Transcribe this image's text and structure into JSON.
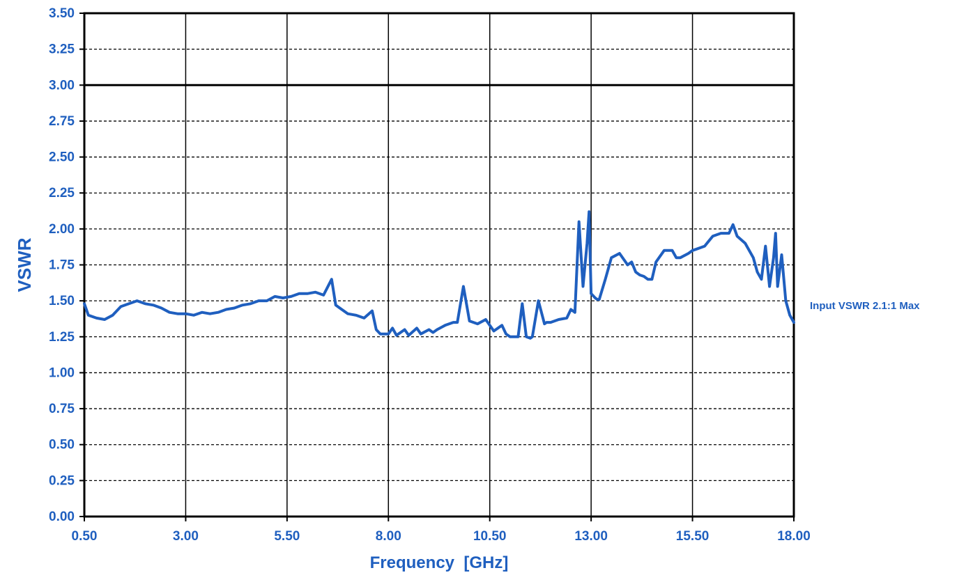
{
  "chart_data": {
    "type": "line",
    "title": "",
    "xlabel": "Frequency  [GHz]",
    "ylabel": "VSWR",
    "xlim": [
      0.5,
      18.0
    ],
    "ylim": [
      0.0,
      3.5
    ],
    "x_ticks": [
      0.5,
      3.0,
      5.5,
      8.0,
      10.5,
      13.0,
      15.5,
      18.0
    ],
    "x_tick_labels": [
      "0.50",
      "3.00",
      "5.50",
      "8.00",
      "10.50",
      "13.00",
      "15.50",
      "18.00"
    ],
    "y_ticks": [
      0.0,
      0.25,
      0.5,
      0.75,
      1.0,
      1.25,
      1.5,
      1.75,
      2.0,
      2.25,
      2.5,
      2.75,
      3.0,
      3.25,
      3.5
    ],
    "y_tick_labels": [
      "0.00",
      "0.25",
      "0.50",
      "0.75",
      "1.00",
      "1.25",
      "1.50",
      "1.75",
      "2.00",
      "2.25",
      "2.50",
      "2.75",
      "3.00",
      "3.25",
      "3.50"
    ],
    "grid": {
      "vertical": "solid",
      "horizontal": "dashed"
    },
    "reference_line": {
      "y": 3.0
    },
    "annotation": "Input VSWR 2.1:1 Max",
    "colors": {
      "series": "#1f5fbf",
      "axis_text": "#1f5fbf",
      "grid": "#000000"
    },
    "series": [
      {
        "x": [
          0.5,
          0.6,
          0.8,
          1.0,
          1.2,
          1.4,
          1.6,
          1.8,
          2.0,
          2.2,
          2.4,
          2.6,
          2.8,
          3.0,
          3.2,
          3.4,
          3.6,
          3.8,
          4.0,
          4.2,
          4.4,
          4.6,
          4.8,
          5.0,
          5.2,
          5.4,
          5.6,
          5.8,
          6.0,
          6.2,
          6.4,
          6.6,
          6.7,
          6.8,
          7.0,
          7.2,
          7.4,
          7.6,
          7.7,
          7.8,
          8.0,
          8.1,
          8.2,
          8.4,
          8.5,
          8.7,
          8.8,
          9.0,
          9.1,
          9.2,
          9.4,
          9.6,
          9.7,
          9.85,
          10.0,
          10.2,
          10.4,
          10.6,
          10.8,
          10.9,
          11.0,
          11.2,
          11.3,
          11.4,
          11.5,
          11.55,
          11.7,
          11.85,
          11.9,
          12.0,
          12.2,
          12.4,
          12.5,
          12.6,
          12.7,
          12.8,
          12.9,
          12.95,
          13.0,
          13.1,
          13.15,
          13.2,
          13.35,
          13.5,
          13.7,
          13.9,
          14.0,
          14.1,
          14.2,
          14.3,
          14.4,
          14.5,
          14.6,
          14.8,
          15.0,
          15.1,
          15.2,
          15.4,
          15.5,
          15.6,
          15.8,
          16.0,
          16.2,
          16.4,
          16.5,
          16.6,
          16.8,
          17.0,
          17.1,
          17.2,
          17.3,
          17.4,
          17.5,
          17.55,
          17.6,
          17.7,
          17.8,
          17.9,
          18.0
        ],
        "y": [
          1.48,
          1.4,
          1.38,
          1.37,
          1.4,
          1.46,
          1.48,
          1.5,
          1.48,
          1.47,
          1.45,
          1.42,
          1.41,
          1.41,
          1.4,
          1.42,
          1.41,
          1.42,
          1.44,
          1.45,
          1.47,
          1.48,
          1.5,
          1.5,
          1.53,
          1.52,
          1.53,
          1.55,
          1.55,
          1.56,
          1.54,
          1.65,
          1.47,
          1.45,
          1.41,
          1.4,
          1.38,
          1.43,
          1.3,
          1.27,
          1.27,
          1.31,
          1.26,
          1.3,
          1.26,
          1.31,
          1.27,
          1.3,
          1.28,
          1.3,
          1.33,
          1.35,
          1.35,
          1.6,
          1.36,
          1.34,
          1.37,
          1.29,
          1.33,
          1.27,
          1.25,
          1.25,
          1.48,
          1.25,
          1.24,
          1.25,
          1.5,
          1.34,
          1.35,
          1.35,
          1.37,
          1.38,
          1.44,
          1.42,
          2.05,
          1.6,
          1.9,
          2.12,
          1.55,
          1.52,
          1.51,
          1.51,
          1.65,
          1.8,
          1.83,
          1.75,
          1.77,
          1.7,
          1.68,
          1.67,
          1.65,
          1.65,
          1.77,
          1.85,
          1.85,
          1.8,
          1.8,
          1.83,
          1.85,
          1.86,
          1.88,
          1.95,
          1.97,
          1.97,
          2.03,
          1.95,
          1.9,
          1.8,
          1.7,
          1.65,
          1.88,
          1.6,
          1.8,
          1.97,
          1.6,
          1.82,
          1.5,
          1.4,
          1.35
        ]
      }
    ]
  }
}
